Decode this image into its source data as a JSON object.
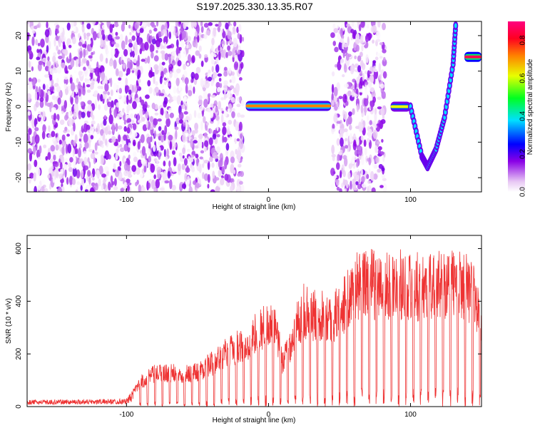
{
  "title": "S197.2025.330.13.35.R07",
  "chart_data": [
    {
      "type": "heatmap",
      "name": "spectrogram",
      "xlabel": "Height of straight line (km)",
      "ylabel": "Frequency (Hz)",
      "xlim": [
        -170,
        150
      ],
      "ylim": [
        -24,
        24
      ],
      "xticks": [
        -100,
        0,
        100
      ],
      "yticks": [
        -20,
        -10,
        0,
        10,
        20
      ],
      "colorbar": {
        "label": "Normalized spectral amplitude",
        "range": [
          0,
          0.9
        ],
        "ticks": [
          0.0,
          0.2,
          0.4,
          0.6,
          0.8
        ],
        "colors": [
          "#ffffff",
          "#e8c8f4",
          "#8a00e6",
          "#0000ff",
          "#00e0ff",
          "#00ff20",
          "#e8ff00",
          "#ff8000",
          "#ff0020",
          "#ff0080"
        ]
      },
      "features": [
        {
          "name": "noise region",
          "x_range": [
            -170,
            -18
          ],
          "freq_range": [
            -24,
            24
          ],
          "amplitude": 0.1
        },
        {
          "name": "carrier line",
          "x_range": [
            -16,
            44
          ],
          "freq": 0.2,
          "amplitude": 0.7
        },
        {
          "name": "noise region",
          "x_range": [
            45,
            82
          ],
          "freq_range": [
            -24,
            24
          ],
          "amplitude": 0.1
        },
        {
          "name": "carrier line",
          "x_range": [
            86,
            100
          ],
          "freq": 0,
          "amplitude": 0.6
        },
        {
          "name": "drifting tone",
          "points": [
            [
              100,
              0
            ],
            [
              108,
              -14
            ],
            [
              112,
              -17
            ],
            [
              118,
              -12
            ],
            [
              124,
              -3
            ],
            [
              130,
              12
            ],
            [
              132,
              24
            ]
          ],
          "amplitude": 0.5
        },
        {
          "name": "carrier line",
          "x_range": [
            138,
            150
          ],
          "freq": 14,
          "amplitude": 0.85
        }
      ]
    },
    {
      "type": "line",
      "name": "snr",
      "xlabel": "Height of straight line (km)",
      "ylabel": "SNR (10 * v/v)",
      "xlim": [
        -170,
        150
      ],
      "ylim": [
        0,
        650
      ],
      "xticks": [
        -100,
        0,
        100
      ],
      "yticks": [
        0,
        200,
        400,
        600
      ],
      "color": "#ee3333",
      "envelope": {
        "x": [
          -170,
          -100,
          -95,
          -90,
          -80,
          -70,
          -60,
          -50,
          -40,
          -30,
          -20,
          -15,
          -10,
          -5,
          0,
          5,
          10,
          15,
          20,
          25,
          30,
          40,
          45,
          50,
          55,
          60,
          70,
          80,
          90,
          100,
          110,
          120,
          130,
          140,
          145,
          150
        ],
        "y": [
          25,
          30,
          70,
          120,
          160,
          165,
          160,
          170,
          210,
          260,
          300,
          290,
          350,
          380,
          400,
          370,
          220,
          300,
          400,
          470,
          440,
          460,
          420,
          480,
          510,
          580,
          610,
          580,
          600,
          590,
          585,
          600,
          610,
          590,
          540,
          400
        ]
      }
    }
  ]
}
